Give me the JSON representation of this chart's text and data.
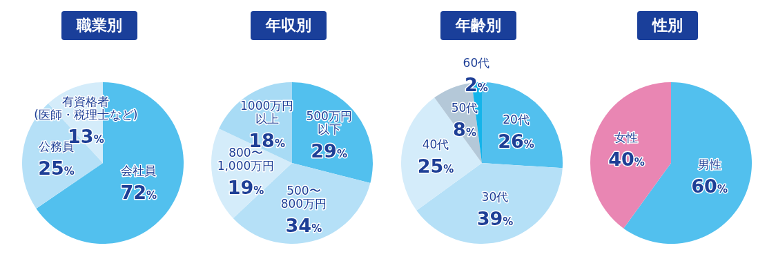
{
  "chart_data": [
    {
      "type": "pie",
      "title": "職業別",
      "categories": [
        "会社員",
        "公務員",
        "有資格者(医師・税理士など)"
      ],
      "values": [
        72,
        25,
        13
      ],
      "value_labels": [
        "72%",
        "25%",
        "13%"
      ],
      "colors": [
        "#52c0ee",
        "#b5e0f7",
        "#d4ecfa"
      ]
    },
    {
      "type": "pie",
      "title": "年収別",
      "categories": [
        "500万円以下",
        "500〜800万円",
        "800〜1,000万円",
        "1000万円以上"
      ],
      "values": [
        29,
        34,
        19,
        18
      ],
      "value_labels": [
        "29%",
        "34%",
        "19%",
        "18%"
      ],
      "colors": [
        "#52c0ee",
        "#b5e0f7",
        "#d4ecfa",
        "#a8dbf5"
      ]
    },
    {
      "type": "pie",
      "title": "年齢別",
      "categories": [
        "20代",
        "30代",
        "40代",
        "50代",
        "60代"
      ],
      "values": [
        26,
        39,
        25,
        8,
        2
      ],
      "value_labels": [
        "26%",
        "39%",
        "25%",
        "8%",
        "2%"
      ],
      "colors": [
        "#52c0ee",
        "#b5e0f7",
        "#d4ecfa",
        "#b4c8d8",
        "#14b4ea"
      ]
    },
    {
      "type": "pie",
      "title": "性別",
      "categories": [
        "男性",
        "女性"
      ],
      "values": [
        60,
        40
      ],
      "value_labels": [
        "60%",
        "40%"
      ],
      "colors": [
        "#52c0ee",
        "#e986b3"
      ]
    }
  ]
}
